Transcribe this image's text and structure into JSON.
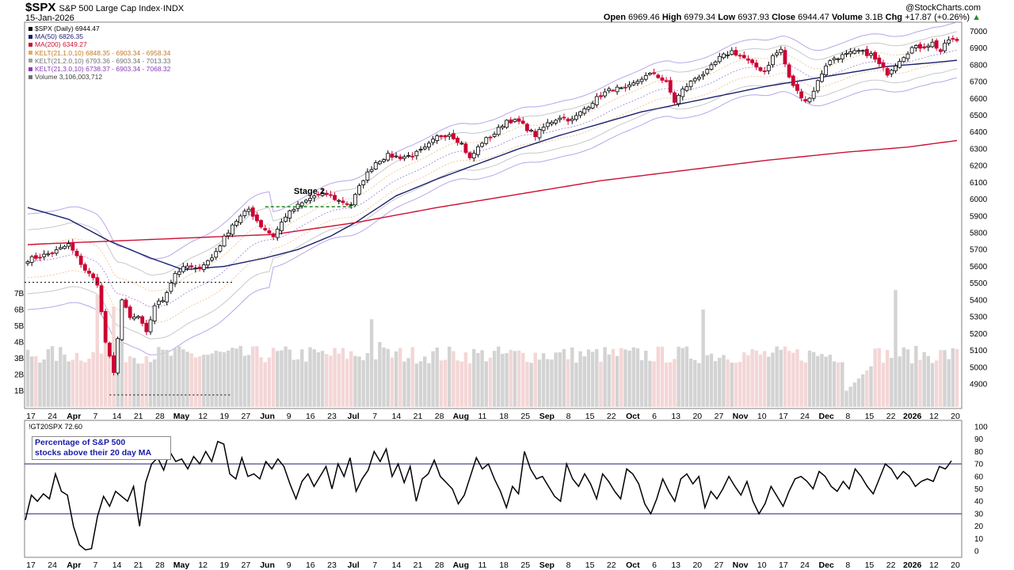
{
  "header": {
    "symbol": "$SPX",
    "name": "S&P 500 Large Cap Index",
    "exchange": "INDX",
    "date": "15-Jan-2026",
    "brand": "@StockCharts.com"
  },
  "ohlc": {
    "open_label": "Open",
    "open": "6969.46",
    "high_label": "High",
    "high": "6979.34",
    "low_label": "Low",
    "low": "6937.93",
    "close_label": "Close",
    "close": "6944.47",
    "volume_label": "Volume",
    "volume": "3.1B",
    "chg_label": "Chg",
    "chg": "+17.87 (+0.26%)"
  },
  "legend": [
    {
      "text": "$SPX (Daily) 6944.47",
      "color": "#000000",
      "icon": "candle-icon"
    },
    {
      "text": "MA(50) 6826.35",
      "color": "#1b1f6e"
    },
    {
      "text": "MA(200) 6349.27",
      "color": "#cc1133"
    },
    {
      "text": "KELT(21,1.0,10) 6848.35 - 6903.34 - 6958.34",
      "color": "#e8a860"
    },
    {
      "text": "KELT(21,2.0,10) 6793.36 - 6903.34 - 7013.33",
      "color": "#a0a0a0"
    },
    {
      "text": "KELT(21,3.0,10) 6738.37 - 6903.34 - 7068.32",
      "color": "#8a3ab9"
    },
    {
      "text": "Volume 3,106,003,712",
      "color": "#606060",
      "icon": "bar-icon"
    }
  ],
  "annotations": {
    "stage": "Stage 2"
  },
  "indicator": {
    "legend": "!GT20SPX 72.60",
    "note_line1": "Percentage of S&P 500",
    "note_line2": "stocks above their 20 day MA"
  },
  "colors": {
    "up": "#000000",
    "down": "#cc0033",
    "ma50": "#1b1f6e",
    "ma200": "#cc1133",
    "kelt1": "#e8a860",
    "kelt2": "#b0b0b0",
    "kelt3": "#b9a5e8",
    "vol_up": "#d3d3d3",
    "vol_down": "#f4d6d6",
    "ind_line": "#000000",
    "ind_level": "#1b1f6e"
  },
  "chart_data": [
    {
      "type": "candlestick",
      "title": "$SPX S&P 500 Large Cap Index",
      "y_axis_ticks": [
        4900,
        5000,
        5100,
        5200,
        5300,
        5400,
        5500,
        5600,
        5700,
        5800,
        5900,
        6000,
        6100,
        6200,
        6300,
        6400,
        6500,
        6600,
        6700,
        6800,
        6900,
        7000
      ],
      "ylim": [
        4820,
        7030
      ],
      "x_ticks": [
        "17",
        "24",
        "Apr",
        "7",
        "14",
        "21",
        "28",
        "May",
        "12",
        "19",
        "27",
        "Jun",
        "9",
        "16",
        "23",
        "Jul",
        "7",
        "14",
        "21",
        "28",
        "Aug",
        "11",
        "18",
        "25",
        "Sep",
        "8",
        "15",
        "22",
        "Oct",
        "6",
        "13",
        "20",
        "27",
        "Nov",
        "10",
        "17",
        "24",
        "Dec",
        "8",
        "15",
        "22",
        "2026",
        "12",
        "20"
      ],
      "x_tick_bold": [
        "Apr",
        "May",
        "Jun",
        "Jul",
        "Aug",
        "Sep",
        "Oct",
        "Nov",
        "Dec",
        "2026"
      ],
      "close_anchors": [
        [
          0,
          5640
        ],
        [
          6,
          5680
        ],
        [
          10,
          5730
        ],
        [
          14,
          5580
        ],
        [
          17,
          5500
        ],
        [
          19,
          5150
        ],
        [
          21,
          4960
        ],
        [
          23,
          5400
        ],
        [
          25,
          5290
        ],
        [
          27,
          5300
        ],
        [
          29,
          5200
        ],
        [
          31,
          5370
        ],
        [
          33,
          5400
        ],
        [
          36,
          5560
        ],
        [
          39,
          5600
        ],
        [
          41,
          5580
        ],
        [
          45,
          5650
        ],
        [
          47,
          5730
        ],
        [
          50,
          5850
        ],
        [
          54,
          5940
        ],
        [
          57,
          5840
        ],
        [
          60,
          5780
        ],
        [
          63,
          5900
        ],
        [
          66,
          5960
        ],
        [
          70,
          6020
        ],
        [
          73,
          6030
        ],
        [
          76,
          5990
        ],
        [
          79,
          5970
        ],
        [
          82,
          6120
        ],
        [
          85,
          6220
        ],
        [
          88,
          6260
        ],
        [
          91,
          6250
        ],
        [
          94,
          6260
        ],
        [
          97,
          6300
        ],
        [
          100,
          6370
        ],
        [
          103,
          6390
        ],
        [
          106,
          6330
        ],
        [
          108,
          6240
        ],
        [
          111,
          6340
        ],
        [
          114,
          6390
        ],
        [
          117,
          6470
        ],
        [
          120,
          6460
        ],
        [
          124,
          6380
        ],
        [
          127,
          6450
        ],
        [
          130,
          6490
        ],
        [
          133,
          6470
        ],
        [
          137,
          6560
        ],
        [
          140,
          6620
        ],
        [
          143,
          6660
        ],
        [
          146,
          6650
        ],
        [
          150,
          6720
        ],
        [
          153,
          6750
        ],
        [
          156,
          6690
        ],
        [
          158,
          6580
        ],
        [
          160,
          6650
        ],
        [
          163,
          6720
        ],
        [
          166,
          6760
        ],
        [
          169,
          6840
        ],
        [
          172,
          6880
        ],
        [
          175,
          6840
        ],
        [
          177,
          6800
        ],
        [
          180,
          6760
        ],
        [
          182,
          6850
        ],
        [
          184,
          6890
        ],
        [
          186,
          6720
        ],
        [
          188,
          6640
        ],
        [
          190,
          6590
        ],
        [
          191,
          6600
        ],
        [
          193,
          6700
        ],
        [
          195,
          6800
        ],
        [
          197,
          6840
        ],
        [
          200,
          6860
        ],
        [
          203,
          6880
        ],
        [
          206,
          6860
        ],
        [
          208,
          6800
        ],
        [
          210,
          6750
        ],
        [
          213,
          6830
        ],
        [
          216,
          6900
        ],
        [
          219,
          6910
        ],
        [
          221,
          6930
        ],
        [
          223,
          6880
        ],
        [
          225,
          6950
        ],
        [
          227,
          6944.47
        ]
      ],
      "last_close": 6944.47,
      "volume_axis": [
        "1B",
        "2B",
        "3B",
        "4B",
        "5B",
        "6B",
        "7B"
      ],
      "volume_spikes": [
        [
          17,
          6.9
        ],
        [
          19,
          5.7
        ],
        [
          21,
          6.2
        ],
        [
          23,
          6.0
        ],
        [
          84,
          5.4
        ],
        [
          86,
          4.0
        ],
        [
          165,
          6.0
        ],
        [
          212,
          7.2
        ]
      ],
      "volume_typical_b": 3.0,
      "ma50_anchors": [
        [
          0,
          5950
        ],
        [
          10,
          5880
        ],
        [
          20,
          5750
        ],
        [
          30,
          5650
        ],
        [
          38,
          5580
        ],
        [
          48,
          5600
        ],
        [
          58,
          5650
        ],
        [
          66,
          5700
        ],
        [
          74,
          5780
        ],
        [
          80,
          5860
        ],
        [
          90,
          6020
        ],
        [
          100,
          6120
        ],
        [
          110,
          6210
        ],
        [
          120,
          6300
        ],
        [
          130,
          6380
        ],
        [
          140,
          6450
        ],
        [
          150,
          6520
        ],
        [
          160,
          6570
        ],
        [
          170,
          6620
        ],
        [
          180,
          6670
        ],
        [
          190,
          6710
        ],
        [
          200,
          6750
        ],
        [
          210,
          6790
        ],
        [
          220,
          6810
        ],
        [
          227,
          6826.35
        ]
      ],
      "ma200_anchors": [
        [
          0,
          5730
        ],
        [
          20,
          5750
        ],
        [
          40,
          5770
        ],
        [
          60,
          5790
        ],
        [
          80,
          5860
        ],
        [
          100,
          5950
        ],
        [
          120,
          6030
        ],
        [
          140,
          6110
        ],
        [
          160,
          6170
        ],
        [
          180,
          6230
        ],
        [
          200,
          6280
        ],
        [
          215,
          6310
        ],
        [
          227,
          6349.27
        ]
      ],
      "kelt_mid": 6903.34,
      "kelt_upper": [
        6958.34,
        7013.33,
        7068.32
      ],
      "kelt_lower": [
        6848.35,
        6793.36,
        6738.37
      ],
      "stage2_box": {
        "from_index": 58,
        "to_index": 80,
        "level": 5955
      }
    },
    {
      "type": "line",
      "title": "!GT20SPX",
      "series": [
        {
          "name": "!GT20SPX",
          "last": 72.6
        }
      ],
      "y_axis_ticks": [
        0,
        10,
        20,
        30,
        40,
        50,
        60,
        70,
        80,
        90,
        100
      ],
      "ylim": [
        -5,
        105
      ],
      "levels": [
        70,
        30
      ],
      "anchors": [
        [
          0,
          25
        ],
        [
          2,
          45
        ],
        [
          4,
          40
        ],
        [
          6,
          46
        ],
        [
          8,
          42
        ],
        [
          10,
          62
        ],
        [
          12,
          48
        ],
        [
          14,
          45
        ],
        [
          16,
          20
        ],
        [
          18,
          5
        ],
        [
          20,
          1
        ],
        [
          22,
          2
        ],
        [
          24,
          28
        ],
        [
          26,
          44
        ],
        [
          28,
          36
        ],
        [
          30,
          48
        ],
        [
          32,
          44
        ],
        [
          34,
          40
        ],
        [
          36,
          52
        ],
        [
          38,
          20
        ],
        [
          40,
          55
        ],
        [
          42,
          70
        ],
        [
          44,
          75
        ],
        [
          46,
          65
        ],
        [
          48,
          80
        ],
        [
          50,
          72
        ],
        [
          52,
          74
        ],
        [
          54,
          66
        ],
        [
          56,
          76
        ],
        [
          58,
          70
        ],
        [
          60,
          80
        ],
        [
          62,
          72
        ],
        [
          64,
          88
        ],
        [
          66,
          86
        ],
        [
          68,
          62
        ],
        [
          70,
          58
        ],
        [
          72,
          75
        ],
        [
          74,
          60
        ],
        [
          76,
          62
        ],
        [
          78,
          58
        ],
        [
          80,
          72
        ],
        [
          82,
          66
        ],
        [
          84,
          74
        ],
        [
          86,
          68
        ],
        [
          88,
          54
        ],
        [
          90,
          42
        ],
        [
          92,
          56
        ],
        [
          94,
          62
        ],
        [
          96,
          52
        ],
        [
          98,
          60
        ],
        [
          100,
          68
        ],
        [
          102,
          50
        ],
        [
          104,
          70
        ],
        [
          106,
          60
        ],
        [
          108,
          75
        ],
        [
          110,
          48
        ],
        [
          112,
          58
        ],
        [
          114,
          65
        ],
        [
          116,
          80
        ],
        [
          118,
          72
        ],
        [
          120,
          82
        ],
        [
          122,
          60
        ],
        [
          124,
          70
        ],
        [
          126,
          55
        ],
        [
          128,
          68
        ],
        [
          130,
          40
        ],
        [
          132,
          58
        ],
        [
          134,
          62
        ],
        [
          136,
          73
        ],
        [
          138,
          60
        ],
        [
          140,
          55
        ],
        [
          142,
          50
        ],
        [
          144,
          38
        ],
        [
          146,
          45
        ],
        [
          148,
          60
        ],
        [
          150,
          75
        ],
        [
          152,
          66
        ],
        [
          154,
          70
        ],
        [
          156,
          58
        ],
        [
          158,
          48
        ],
        [
          160,
          35
        ],
        [
          162,
          52
        ],
        [
          164,
          46
        ],
        [
          166,
          80
        ],
        [
          168,
          66
        ],
        [
          170,
          58
        ],
        [
          172,
          60
        ],
        [
          174,
          52
        ],
        [
          176,
          44
        ],
        [
          178,
          40
        ],
        [
          180,
          70
        ],
        [
          182,
          58
        ],
        [
          184,
          52
        ],
        [
          186,
          62
        ],
        [
          188,
          54
        ],
        [
          190,
          42
        ],
        [
          192,
          62
        ],
        [
          194,
          56
        ],
        [
          196,
          48
        ],
        [
          198,
          42
        ],
        [
          200,
          66
        ],
        [
          202,
          62
        ],
        [
          204,
          54
        ],
        [
          206,
          38
        ],
        [
          208,
          30
        ],
        [
          210,
          42
        ],
        [
          212,
          58
        ],
        [
          214,
          48
        ],
        [
          216,
          40
        ],
        [
          218,
          58
        ],
        [
          220,
          62
        ],
        [
          222,
          54
        ],
        [
          224,
          60
        ],
        [
          226,
          35
        ],
        [
          228,
          48
        ],
        [
          230,
          42
        ],
        [
          232,
          50
        ],
        [
          234,
          60
        ],
        [
          236,
          52
        ],
        [
          238,
          45
        ],
        [
          240,
          56
        ],
        [
          242,
          40
        ],
        [
          244,
          30
        ],
        [
          246,
          38
        ],
        [
          248,
          52
        ],
        [
          250,
          44
        ],
        [
          252,
          36
        ],
        [
          254,
          48
        ],
        [
          256,
          58
        ],
        [
          258,
          60
        ],
        [
          260,
          56
        ],
        [
          262,
          50
        ],
        [
          264,
          64
        ],
        [
          266,
          60
        ],
        [
          268,
          52
        ],
        [
          270,
          48
        ],
        [
          272,
          56
        ],
        [
          274,
          50
        ],
        [
          276,
          66
        ],
        [
          278,
          60
        ],
        [
          280,
          52
        ],
        [
          282,
          46
        ],
        [
          284,
          58
        ],
        [
          286,
          70
        ],
        [
          288,
          66
        ],
        [
          290,
          58
        ],
        [
          292,
          64
        ],
        [
          294,
          60
        ],
        [
          296,
          52
        ],
        [
          298,
          56
        ],
        [
          300,
          58
        ],
        [
          302,
          56
        ],
        [
          304,
          68
        ],
        [
          306,
          66
        ],
        [
          308,
          72
        ]
      ]
    }
  ]
}
